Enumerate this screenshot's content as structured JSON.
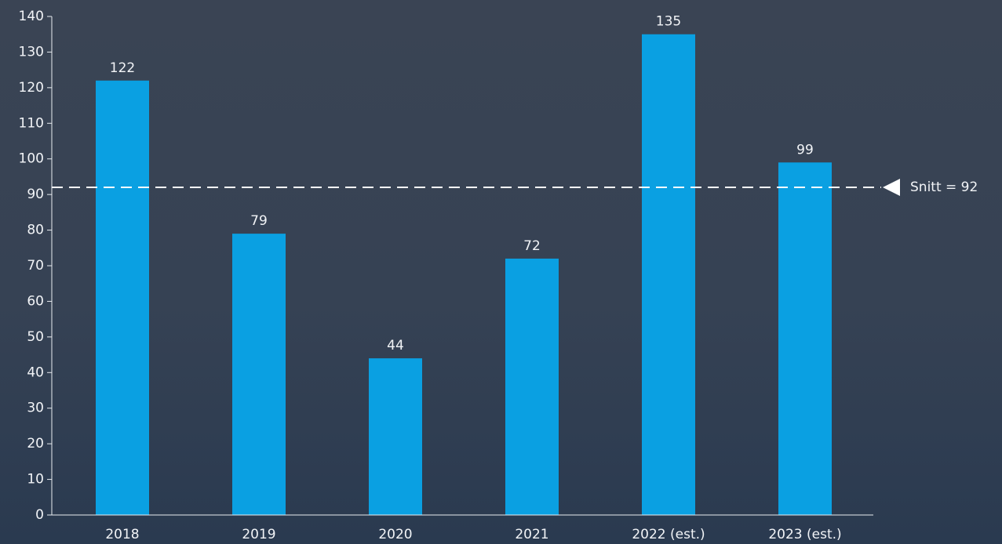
{
  "chart_data": {
    "type": "bar",
    "categories": [
      "2018",
      "2019",
      "2020",
      "2021",
      "2022 (est.)",
      "2023 (est.)"
    ],
    "values": [
      122,
      79,
      44,
      72,
      135,
      99
    ],
    "color": "#0aa0e2",
    "ylim": [
      0,
      140
    ],
    "yticks": [
      0,
      10,
      20,
      30,
      40,
      50,
      60,
      70,
      80,
      90,
      100,
      110,
      120,
      130,
      140
    ],
    "reference_line": {
      "value": 92,
      "label": "Snitt = 92"
    }
  }
}
